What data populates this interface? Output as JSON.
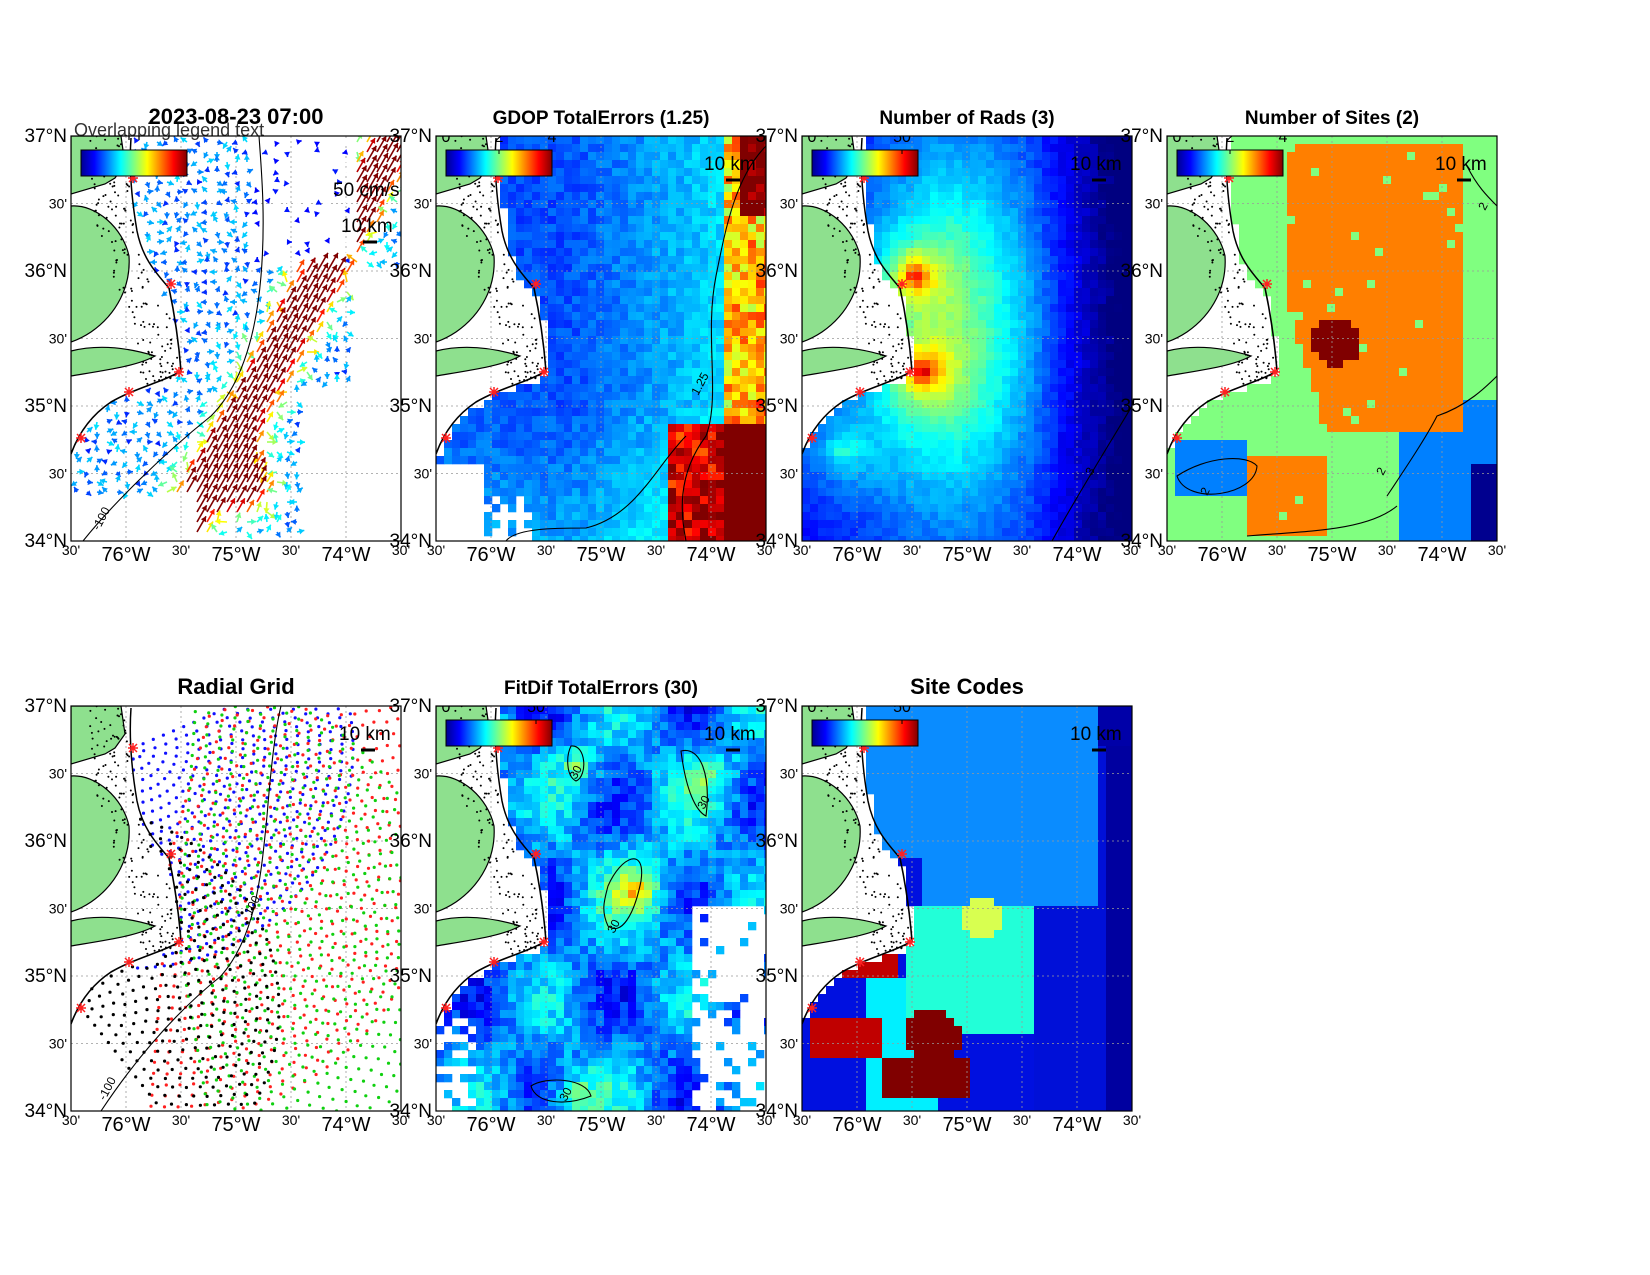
{
  "figure": {
    "timestamp": "2023-08-23 07:00",
    "overlap_text": "Overlapping legend text",
    "lat_labels": [
      "37°N",
      "30'",
      "36°N",
      "30'",
      "35°N",
      "30'",
      "34°N"
    ],
    "lon_labels": [
      "30'",
      "76°W",
      "30'",
      "75°W",
      "30'",
      "74°W",
      "30'"
    ],
    "scale_label": "10 km",
    "land_color": "#8ee08e",
    "coast_color": "#000000"
  },
  "panels": [
    {
      "id": "currents",
      "title": "",
      "colorbar": {
        "unit": "cm/s",
        "ticks": []
      },
      "arrow_scale": "50 cm/s",
      "contour": {
        "value": "-100",
        "label": "-100"
      },
      "field": "currents"
    },
    {
      "id": "gdop",
      "title": "GDOP TotalErrors (1.25)",
      "colorbar": {
        "unit": "",
        "ticks": [
          "0",
          "2",
          "4"
        ]
      },
      "contour": {
        "value": "1.25",
        "label": "1.25"
      },
      "field": "gdop"
    },
    {
      "id": "rads",
      "title": "Number of Rads (3)",
      "colorbar": {
        "unit": "",
        "ticks": [
          "0",
          "50"
        ]
      },
      "contour": {
        "value": "3",
        "label": "3"
      },
      "field": "rads"
    },
    {
      "id": "sites",
      "title": "Number of Sites (2)",
      "colorbar": {
        "unit": "",
        "ticks": [
          "0",
          "2",
          "4"
        ]
      },
      "contour": {
        "value": "2",
        "label": "2"
      },
      "field": "sites"
    },
    {
      "id": "radial",
      "title": "Radial Grid",
      "colorbar": null,
      "contour": {
        "value": "-100",
        "label": "-100"
      },
      "contour2": {
        "value": "100",
        "label": "100"
      },
      "field": "radial"
    },
    {
      "id": "fitdif",
      "title": "FitDif TotalErrors (30)",
      "colorbar": {
        "unit": "cm/s",
        "ticks": [
          "0",
          "50"
        ]
      },
      "contour": {
        "value": "30",
        "label": "30"
      },
      "field": "fitdif"
    },
    {
      "id": "codes",
      "title": "Site Codes",
      "colorbar": {
        "unit": "",
        "ticks": [
          "0",
          "50"
        ]
      },
      "field": "codes"
    }
  ]
}
